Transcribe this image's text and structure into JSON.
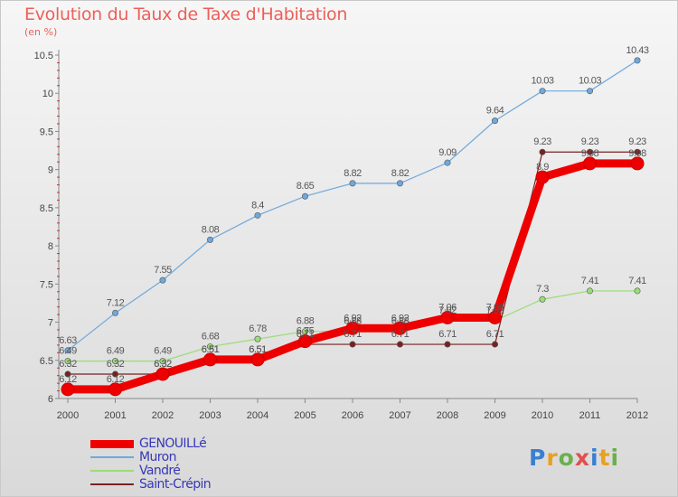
{
  "title": "Evolution du Taux de Taxe d'Habitation",
  "subtitle": "(en %)",
  "logo": {
    "text": "Proxiti",
    "colors": [
      "#3a7fd0",
      "#e8a020",
      "#6ab04c",
      "#e05050",
      "#3a7fd0",
      "#e8a020",
      "#6ab04c"
    ]
  },
  "chart_data": {
    "type": "line",
    "x": [
      2000,
      2001,
      2002,
      2003,
      2004,
      2005,
      2006,
      2007,
      2008,
      2009,
      2010,
      2011,
      2012
    ],
    "ylim": [
      6,
      10.5
    ],
    "yticks": [
      6,
      6.5,
      7,
      7.5,
      8,
      8.5,
      9,
      9.5,
      10,
      10.5
    ],
    "grid": false,
    "legend_position": "bottom-left",
    "series": [
      {
        "name": "GENOUILLé",
        "color": "#ee0000",
        "width": 9,
        "marker": 7,
        "values": [
          6.12,
          6.12,
          6.32,
          6.51,
          6.51,
          6.75,
          6.92,
          6.92,
          7.06,
          7.06,
          8.9,
          9.08,
          9.08
        ],
        "labels": [
          "6.12",
          "6.12",
          "6.32",
          "6.51",
          "6.51",
          "6.75",
          "6.92",
          "6.92",
          "7.06",
          "7.06",
          "8.9",
          "9.08",
          "9.08"
        ]
      },
      {
        "name": "Muron",
        "color": "#6fa8dc",
        "width": 1.2,
        "marker": 3.2,
        "values": [
          6.63,
          7.12,
          7.55,
          8.08,
          8.4,
          8.65,
          8.82,
          8.82,
          9.09,
          9.64,
          10.03,
          10.03,
          10.43
        ],
        "labels": [
          "6.63",
          "7.12",
          "7.55",
          "8.08",
          "8.4",
          "8.65",
          "8.82",
          "8.82",
          "9.09",
          "9.64",
          "10.03",
          "10.03",
          "10.43"
        ]
      },
      {
        "name": "Vandré",
        "color": "#99dd77",
        "width": 1.2,
        "marker": 3.2,
        "values": [
          6.49,
          6.49,
          6.49,
          6.68,
          6.78,
          6.88,
          6.88,
          6.88,
          7.02,
          7.02,
          7.3,
          7.41,
          7.41
        ],
        "labels": [
          "6.49",
          "6.49",
          "6.49",
          "6.68",
          "6.78",
          "6.88",
          "6.88",
          "6.88",
          "7.02",
          "7.02",
          "7.3",
          "7.41",
          "7.41"
        ]
      },
      {
        "name": "Saint-Crépin",
        "color": "#772222",
        "width": 1.2,
        "marker": 3.2,
        "values": [
          6.32,
          6.32,
          6.32,
          6.51,
          6.51,
          6.71,
          6.71,
          6.71,
          6.71,
          6.71,
          9.23,
          9.23,
          9.23
        ],
        "labels": [
          "6.32",
          "6.32",
          "6.32",
          "6.51",
          "6.51",
          "6.71",
          "6.71",
          "6.71",
          "6.71",
          "6.71",
          "9.23",
          "9.23",
          "9.23"
        ]
      }
    ]
  }
}
